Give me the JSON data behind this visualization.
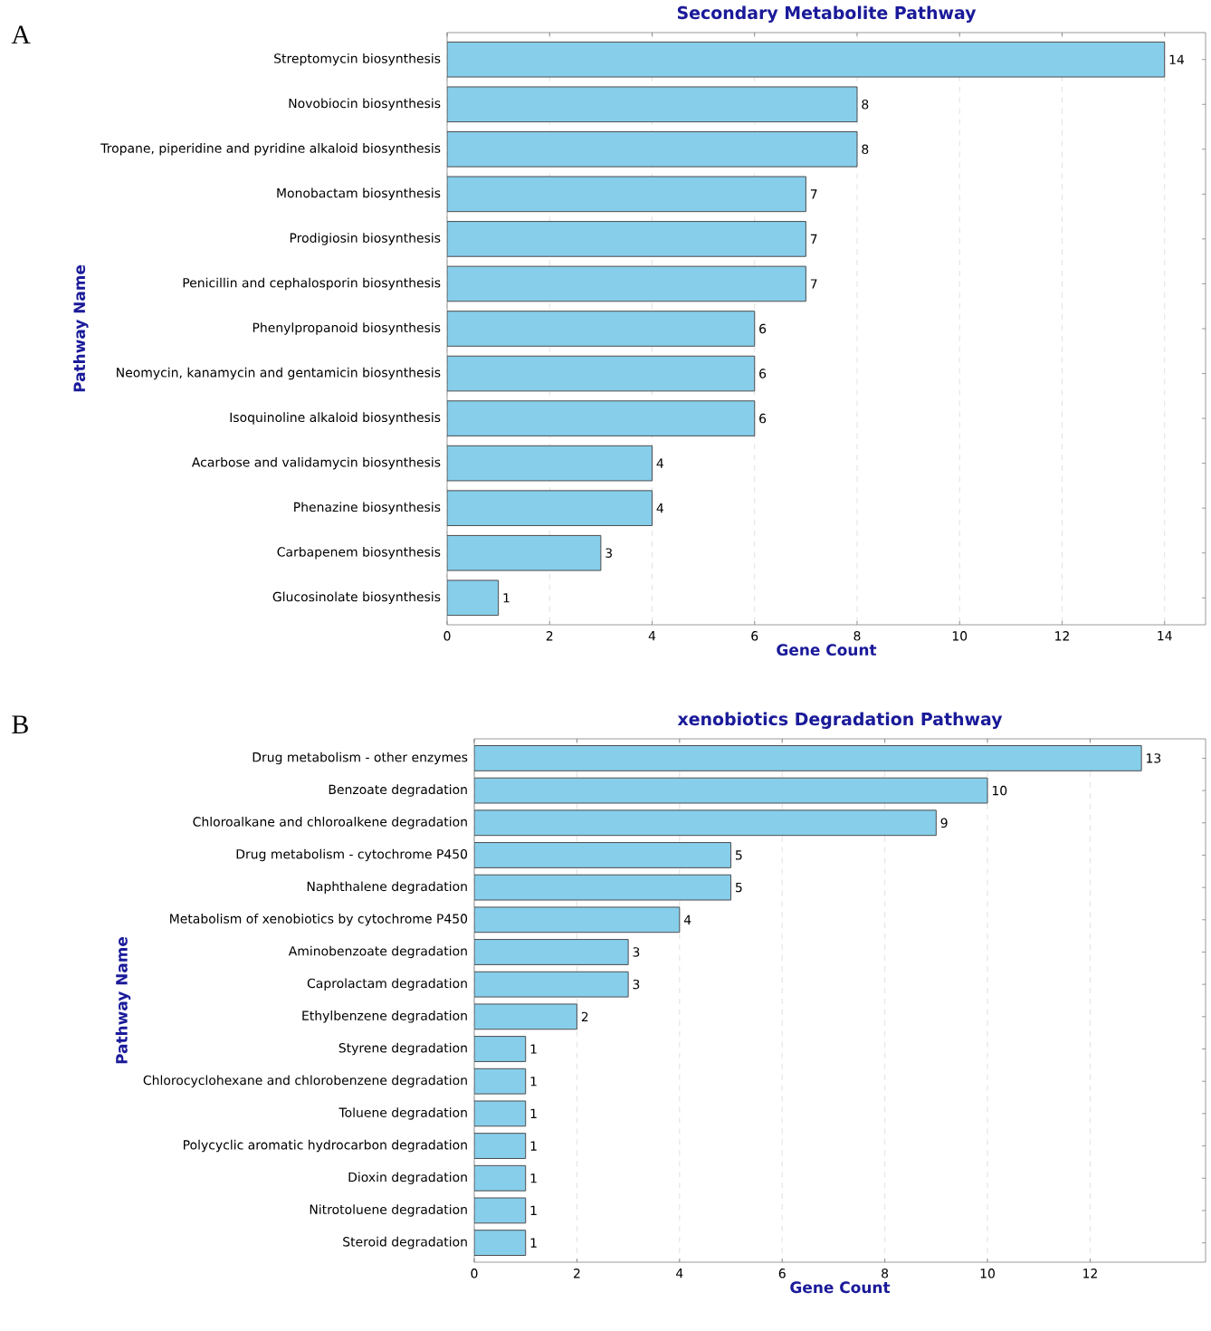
{
  "chart_data": [
    {
      "type": "bar",
      "orientation": "horizontal",
      "title": "Secondary Metabolite Pathway",
      "xlabel": "Gene Count",
      "ylabel": "Pathway Name",
      "annotations": [
        "A"
      ],
      "categories": [
        "Streptomycin biosynthesis",
        "Novobiocin biosynthesis",
        "Tropane, piperidine and pyridine alkaloid biosynthesis",
        "Monobactam biosynthesis",
        "Prodigiosin biosynthesis",
        "Penicillin and cephalosporin biosynthesis",
        "Phenylpropanoid biosynthesis",
        "Neomycin, kanamycin and gentamicin biosynthesis",
        "Isoquinoline alkaloid biosynthesis",
        "Acarbose and validamycin biosynthesis",
        "Phenazine biosynthesis",
        "Carbapenem biosynthesis",
        "Glucosinolate biosynthesis"
      ],
      "values": [
        14,
        8,
        8,
        7,
        7,
        7,
        6,
        6,
        6,
        4,
        4,
        3,
        1
      ],
      "color": "#87ceeb",
      "data_labels": true,
      "grid": "x",
      "xlim": [
        0,
        14.8
      ],
      "xticks": [
        0,
        2,
        4,
        6,
        8,
        10,
        12,
        14
      ]
    },
    {
      "type": "bar",
      "orientation": "horizontal",
      "title": "xenobiotics Degradation Pathway",
      "xlabel": "Gene Count",
      "ylabel": "Pathway Name",
      "annotations": [
        "B"
      ],
      "categories": [
        "Drug metabolism - other enzymes",
        "Benzoate degradation",
        "Chloroalkane and chloroalkene degradation",
        "Drug metabolism - cytochrome P450",
        "Naphthalene degradation",
        "Metabolism of xenobiotics by cytochrome P450",
        "Aminobenzoate degradation",
        "Caprolactam degradation",
        "Ethylbenzene degradation",
        "Styrene degradation",
        "Chlorocyclohexane and chlorobenzene degradation",
        "Toluene degradation",
        "Polycyclic aromatic hydrocarbon degradation",
        "Dioxin degradation",
        "Nitrotoluene degradation",
        "Steroid degradation"
      ],
      "values": [
        13,
        10,
        9,
        5,
        5,
        4,
        3,
        3,
        2,
        1,
        1,
        1,
        1,
        1,
        1,
        1
      ],
      "color": "#87ceeb",
      "data_labels": true,
      "grid": "x",
      "xlim": [
        0,
        14.25
      ],
      "xticks": [
        0,
        2,
        4,
        6,
        8,
        10,
        12
      ]
    }
  ]
}
